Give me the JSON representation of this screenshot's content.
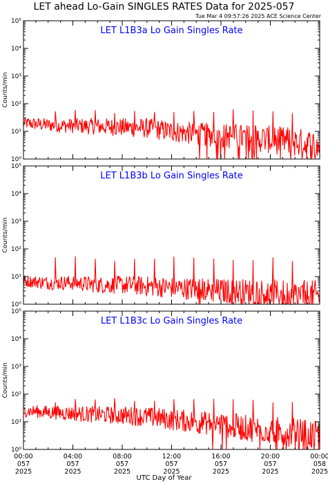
{
  "title": "LET ahead Lo-Gain SINGLES RATES Data for 2025-057",
  "stamp": "Tue Mar  4 09:57:26 2025 ACE Science Center",
  "xlabel": "UTC Day of Year",
  "colors": {
    "trace": "#ff0000",
    "panel_title": "#0000ff",
    "axes": "#000000"
  },
  "chart_data": [
    {
      "type": "line",
      "title": "LET L1B3a Lo Gain Singles Rate",
      "ylabel": "Counts/min",
      "yscale": "log",
      "ylim": [
        1,
        100000
      ],
      "xlim_hours": [
        0,
        24
      ],
      "series": [
        {
          "x_hours": [
            0,
            2,
            4,
            6,
            8,
            10,
            12,
            14,
            16,
            18,
            20,
            22,
            24
          ],
          "values": [
            20,
            17,
            16,
            15,
            14,
            13,
            10,
            8,
            7,
            6,
            5,
            4,
            3
          ]
        }
      ],
      "spikes": {
        "first_hour": 2.6,
        "spacing_hours": 1.6,
        "count": 13,
        "peak": 55
      }
    },
    {
      "type": "line",
      "title": "LET L1B3b Lo Gain Singles Rate",
      "ylabel": "Counts/min",
      "yscale": "log",
      "ylim": [
        1,
        100000
      ],
      "xlim_hours": [
        0,
        24
      ],
      "series": [
        {
          "x_hours": [
            0,
            2,
            4,
            6,
            8,
            10,
            12,
            14,
            16,
            18,
            20,
            22,
            24
          ],
          "values": [
            7,
            6,
            6,
            5,
            5,
            4.5,
            4,
            3.5,
            3,
            2.8,
            2.5,
            2.2,
            2
          ]
        }
      ],
      "spikes": {
        "first_hour": 2.6,
        "spacing_hours": 1.6,
        "count": 13,
        "peak": 45
      }
    },
    {
      "type": "line",
      "title": "LET L1B3c Lo Gain Singles Rate",
      "ylabel": "Counts/min",
      "yscale": "log",
      "ylim": [
        1,
        100000
      ],
      "xlim_hours": [
        0,
        24
      ],
      "series": [
        {
          "x_hours": [
            0,
            2,
            4,
            6,
            8,
            10,
            12,
            14,
            16,
            18,
            20,
            22,
            24
          ],
          "values": [
            25,
            22,
            20,
            18,
            17,
            15,
            12,
            10,
            8,
            6,
            5,
            4,
            3
          ]
        }
      ],
      "spikes": {
        "first_hour": 2.6,
        "spacing_hours": 1.6,
        "count": 13,
        "peak": 60
      }
    }
  ],
  "y_tick_labels": [
    "10⁰",
    "10¹",
    "10²",
    "10³",
    "10⁴",
    "10⁵"
  ],
  "x_ticks": [
    {
      "hour": 0,
      "time": "00:00",
      "doy": "057",
      "year": "2025"
    },
    {
      "hour": 4,
      "time": "04:00",
      "doy": "057",
      "year": "2025"
    },
    {
      "hour": 8,
      "time": "08:00",
      "doy": "057",
      "year": "2025"
    },
    {
      "hour": 12,
      "time": "12:00",
      "doy": "057",
      "year": "2025"
    },
    {
      "hour": 16,
      "time": "16:00",
      "doy": "057",
      "year": "2025"
    },
    {
      "hour": 20,
      "time": "20:00",
      "doy": "057",
      "year": "2025"
    },
    {
      "hour": 24,
      "time": "00:00",
      "doy": "058",
      "year": "2025"
    }
  ]
}
